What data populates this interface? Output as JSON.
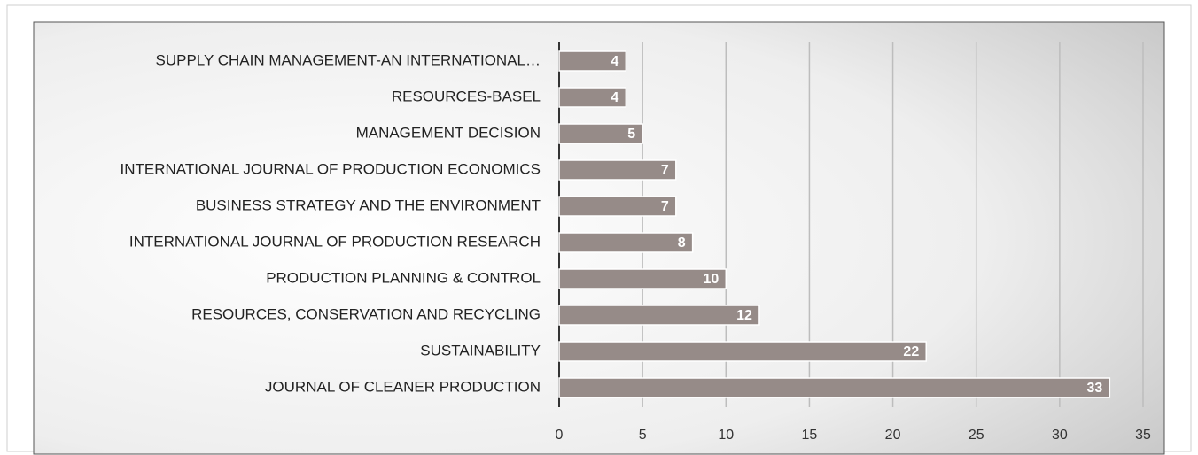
{
  "chart_data": {
    "type": "bar",
    "orientation": "horizontal",
    "categories": [
      "SUPPLY CHAIN MANAGEMENT-AN INTERNATIONAL…",
      "RESOURCES-BASEL",
      "MANAGEMENT DECISION",
      "INTERNATIONAL JOURNAL OF PRODUCTION ECONOMICS",
      "BUSINESS STRATEGY AND THE ENVIRONMENT",
      "INTERNATIONAL JOURNAL OF PRODUCTION RESEARCH",
      "PRODUCTION PLANNING & CONTROL",
      "RESOURCES, CONSERVATION AND RECYCLING",
      "SUSTAINABILITY",
      "JOURNAL OF CLEANER PRODUCTION"
    ],
    "values": [
      4,
      4,
      5,
      7,
      7,
      8,
      10,
      12,
      22,
      33
    ],
    "color": "#968b88",
    "xlim": [
      0,
      35
    ],
    "xticks": [
      0,
      5,
      10,
      15,
      20,
      25,
      30,
      35
    ],
    "grid": true
  }
}
